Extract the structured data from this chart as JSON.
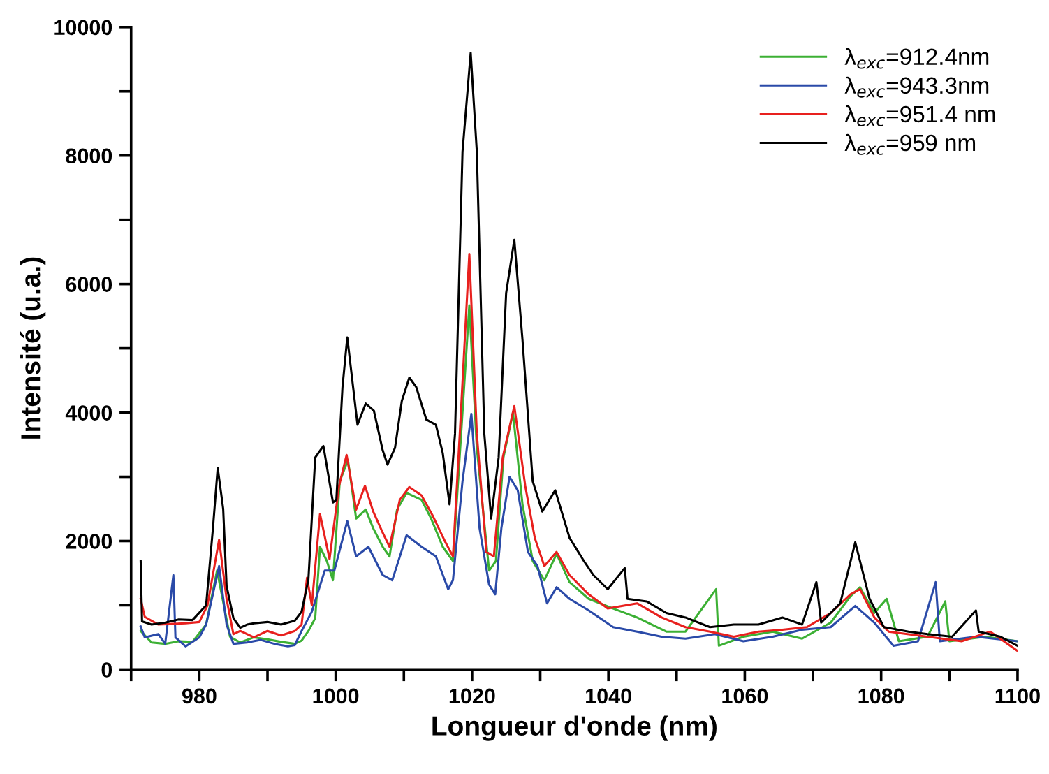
{
  "chart_data": {
    "type": "line",
    "xlabel": "Longueur d'onde (nm)",
    "ylabel": "Intensité (u.a.)",
    "xlim": [
      970,
      1100
    ],
    "xticks": [
      {
        "value": 970,
        "label": null
      },
      980,
      {
        "value": 990,
        "label": null
      },
      1000,
      {
        "value": 1010,
        "label": null
      },
      1020,
      {
        "value": 1030,
        "label": null
      },
      1040,
      {
        "value": 1050,
        "label": null
      },
      1060,
      {
        "value": 1070,
        "label": null
      },
      1080,
      {
        "value": 1090,
        "label": null
      },
      1100
    ],
    "ylim": [
      0,
      10000
    ],
    "yticks": [
      0,
      {
        "value": 1000,
        "label": null
      },
      2000,
      {
        "value": 3000,
        "label": null
      },
      4000,
      {
        "value": 5000,
        "label": null
      },
      6000,
      {
        "value": 7000,
        "label": null
      },
      8000,
      {
        "value": 9000,
        "label": null
      },
      10000
    ],
    "grid": false,
    "legend": "top right",
    "line_style": "solid",
    "marker": "none",
    "series": [
      {
        "name": "λ$_{exc}$=912.4nm",
        "color": "#3cb034",
        "x": [
          971.4,
          973,
          975,
          977,
          979,
          981,
          982.6,
          984.5,
          986,
          988,
          990,
          992,
          994,
          995,
          996,
          997,
          997.7,
          998.7,
          999.6,
          1000.6,
          1001.8,
          1003,
          1004.4,
          1005.5,
          1006.9,
          1007.9,
          1009,
          1010.4,
          1012.6,
          1014,
          1015.7,
          1017.2,
          1018.4,
          1019.6,
          1020.7,
          1022.5,
          1023.5,
          1024.6,
          1026,
          1027.4,
          1028.9,
          1030.6,
          1032.4,
          1034.3,
          1037.1,
          1040.7,
          1044.2,
          1048.5,
          1051.3,
          1055.8,
          1056.2,
          1059.8,
          1064.1,
          1068.4,
          1072.6,
          1075.5,
          1076.9,
          1079,
          1080.8,
          1082.6,
          1086.8,
          1089.4,
          1090,
          1095.3,
          1100
        ],
        "values": [
          600,
          420,
          400,
          440,
          430,
          700,
          1540,
          510,
          420,
          500,
          470,
          430,
          400,
          450,
          600,
          800,
          1910,
          1690,
          1390,
          2930,
          3260,
          2350,
          2490,
          2200,
          1910,
          1760,
          2490,
          2750,
          2640,
          2350,
          1910,
          1690,
          3670,
          5670,
          3450,
          1540,
          1690,
          3300,
          4000,
          2570,
          1690,
          1390,
          1800,
          1360,
          1100,
          950,
          810,
          590,
          590,
          1250,
          370,
          510,
          590,
          480,
          730,
          1140,
          1280,
          880,
          1100,
          440,
          510,
          1060,
          440,
          510,
          440
        ]
      },
      {
        "name": "λ$_{exc}$=943.3nm",
        "color": "#2a4aa8",
        "x": [
          971.4,
          972,
          974,
          975,
          976.2,
          976.5,
          978,
          980,
          981,
          982.9,
          984,
          985,
          987,
          989,
          991,
          993,
          994,
          995,
          996.5,
          998.4,
          999.8,
          1001.7,
          1003,
          1004.8,
          1006.9,
          1008.3,
          1010.4,
          1012.6,
          1014.7,
          1016.5,
          1017.2,
          1018.6,
          1019.9,
          1021.1,
          1022.5,
          1023.4,
          1024.3,
          1025.5,
          1026.7,
          1028.2,
          1029.6,
          1031,
          1032.4,
          1034.3,
          1037.1,
          1040.7,
          1044.2,
          1047.8,
          1051.3,
          1055.6,
          1059.8,
          1064.1,
          1068.4,
          1072.6,
          1076.2,
          1079,
          1081.8,
          1085.4,
          1088,
          1088.6,
          1093.9,
          1100
        ],
        "values": [
          670,
          500,
          550,
          400,
          1470,
          500,
          360,
          500,
          700,
          1610,
          700,
          400,
          420,
          460,
          400,
          360,
          380,
          600,
          900,
          1540,
          1540,
          2310,
          1760,
          1910,
          1470,
          1390,
          2090,
          1910,
          1760,
          1250,
          1390,
          2930,
          3980,
          2200,
          1320,
          1170,
          2200,
          3000,
          2790,
          1830,
          1610,
          1030,
          1280,
          1100,
          920,
          660,
          590,
          510,
          480,
          550,
          440,
          510,
          620,
          660,
          990,
          730,
          370,
          440,
          1360,
          440,
          510,
          440
        ]
      },
      {
        "name": "λ$_{exc}$=951.4 nm",
        "color": "#e8201e",
        "x": [
          971.4,
          972,
          974,
          976,
          978,
          980,
          981.2,
          982.9,
          984,
          985,
          986,
          988,
          990,
          992,
          994,
          995,
          995.8,
          996.5,
          997.7,
          999.1,
          1000.5,
          1001.6,
          1003,
          1004.3,
          1005.5,
          1006.9,
          1007.9,
          1009.4,
          1010.8,
          1012.6,
          1014.3,
          1016.1,
          1017.2,
          1018.2,
          1019.6,
          1020.7,
          1022.1,
          1023.2,
          1024.5,
          1026.2,
          1027.8,
          1029.2,
          1030.6,
          1032.4,
          1034.3,
          1037.1,
          1039.9,
          1044.2,
          1047.8,
          1051.3,
          1054.9,
          1058.4,
          1062,
          1065.5,
          1069.1,
          1072.6,
          1075.5,
          1076.9,
          1079,
          1081.1,
          1086.8,
          1091.8,
          1096,
          1100
        ],
        "values": [
          1100,
          820,
          700,
          710,
          720,
          740,
          1000,
          2020,
          1100,
          550,
          600,
          500,
          600,
          530,
          600,
          700,
          1430,
          1000,
          2420,
          1720,
          2860,
          3340,
          2490,
          2860,
          2460,
          2130,
          1910,
          2640,
          2840,
          2710,
          2380,
          1980,
          1760,
          3670,
          6470,
          3670,
          1830,
          1760,
          3300,
          4100,
          2860,
          2050,
          1610,
          1830,
          1470,
          1170,
          950,
          1030,
          810,
          660,
          590,
          510,
          590,
          620,
          660,
          880,
          1170,
          1250,
          810,
          590,
          510,
          440,
          590,
          290
        ]
      },
      {
        "name": "λ$_{exc}$=959 nm",
        "color": "#000000",
        "x": [
          971.4,
          971.6,
          973,
          975,
          977,
          979,
          981,
          982,
          982.7,
          983.5,
          984,
          985,
          986,
          987,
          988,
          990,
          992,
          994,
          995,
          996,
          997,
          998.2,
          999.6,
          1000.1,
          1001,
          1001.7,
          1003.2,
          1004.4,
          1005.6,
          1006.9,
          1007.6,
          1008.7,
          1009.7,
          1010.8,
          1011.8,
          1013.3,
          1014.7,
          1015.7,
          1016.7,
          1017.5,
          1018.6,
          1019.8,
          1020.7,
          1021.8,
          1022.8,
          1023.9,
          1025,
          1026.2,
          1027.4,
          1028.9,
          1030.3,
          1032.2,
          1034.3,
          1036.4,
          1037.8,
          1039.9,
          1042.4,
          1042.8,
          1045.6,
          1048.5,
          1051.3,
          1054.9,
          1058.4,
          1062,
          1065.5,
          1068.4,
          1070.5,
          1071.2,
          1074,
          1076.2,
          1078.3,
          1080.4,
          1084,
          1086.8,
          1090.4,
          1093.9,
          1094.3,
          1097.5,
          1100
        ],
        "values": [
          1690,
          750,
          700,
          730,
          780,
          770,
          1000,
          2200,
          3140,
          2500,
          1300,
          800,
          650,
          700,
          720,
          740,
          700,
          760,
          900,
          1400,
          3300,
          3480,
          2600,
          2640,
          4400,
          5170,
          3810,
          4140,
          4030,
          3410,
          3190,
          3450,
          4180,
          4545,
          4400,
          3890,
          3810,
          3370,
          2570,
          3670,
          8060,
          9600,
          8060,
          3670,
          2350,
          3300,
          5860,
          6690,
          5130,
          2930,
          2460,
          2790,
          2050,
          1690,
          1470,
          1250,
          1580,
          1100,
          1060,
          880,
          810,
          660,
          700,
          700,
          810,
          700,
          1360,
          730,
          1030,
          1980,
          1100,
          660,
          590,
          550,
          510,
          920,
          590,
          510,
          370
        ]
      }
    ]
  }
}
